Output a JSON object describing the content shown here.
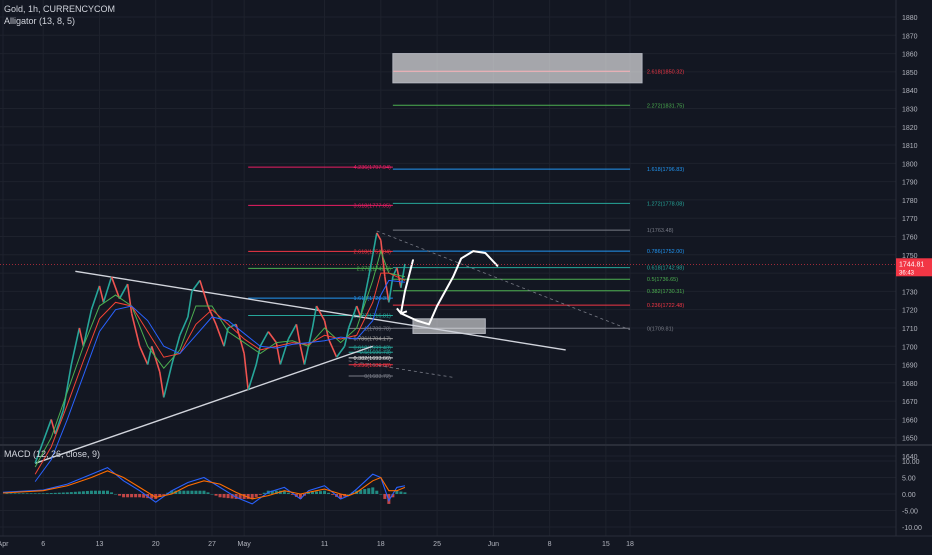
{
  "header": {
    "symbol_line": "Gold, 1h, CURRENCYCOM",
    "indicator_line": "Alligator (13, 8, 5)",
    "macd_line": "MACD (12, 26, close, 9)"
  },
  "chart_data": {
    "type": "line",
    "title": "Gold, 1h, CURRENCYCOM",
    "price_axis": {
      "ticks": [
        1880,
        1870,
        1860,
        1850,
        1840,
        1830,
        1820,
        1810,
        1800,
        1790,
        1780,
        1770,
        1760,
        1750,
        1740,
        1730,
        1720,
        1710,
        1700,
        1690,
        1680,
        1670,
        1660,
        1650,
        1640
      ],
      "ylim": [
        1634,
        1888
      ],
      "last_price": "1744.81",
      "last_price_sub": "36:43"
    },
    "macd_axis": {
      "ticks": [
        "10.00",
        "5.00",
        "0.00",
        "-5.00",
        "-10.00"
      ],
      "values": [
        10,
        5,
        0,
        -5,
        -10
      ],
      "ylim": [
        -13,
        13
      ]
    },
    "time_axis": {
      "labels": [
        "Apr",
        "6",
        "13",
        "20",
        "27",
        "May",
        "11",
        "18",
        "25",
        "Jun",
        "8",
        "15",
        "18"
      ],
      "positions_day": [
        0,
        5,
        12,
        19,
        26,
        30,
        40,
        47,
        54,
        61,
        68,
        75,
        78
      ]
    },
    "price_path": [
      [
        4.0,
        1636
      ],
      [
        5.0,
        1648
      ],
      [
        6.0,
        1660
      ],
      [
        6.5,
        1652
      ],
      [
        7.5,
        1665
      ],
      [
        8.5,
        1690
      ],
      [
        9.5,
        1710
      ],
      [
        10.0,
        1700
      ],
      [
        11.0,
        1720
      ],
      [
        12.0,
        1733
      ],
      [
        12.5,
        1724
      ],
      [
        13.5,
        1738
      ],
      [
        14.5,
        1726
      ],
      [
        15.5,
        1734
      ],
      [
        16.0,
        1718
      ],
      [
        17.0,
        1700
      ],
      [
        18.0,
        1690
      ],
      [
        18.5,
        1700
      ],
      [
        19.5,
        1686
      ],
      [
        20.0,
        1672
      ],
      [
        21.0,
        1690
      ],
      [
        22.0,
        1706
      ],
      [
        23.0,
        1716
      ],
      [
        23.5,
        1730
      ],
      [
        24.5,
        1736
      ],
      [
        25.5,
        1722
      ],
      [
        26.5,
        1712
      ],
      [
        27.5,
        1700
      ],
      [
        28.0,
        1710
      ],
      [
        29.0,
        1712
      ],
      [
        30.0,
        1696
      ],
      [
        30.5,
        1676
      ],
      [
        31.5,
        1690
      ],
      [
        32.0,
        1700
      ],
      [
        33.0,
        1708
      ],
      [
        34.0,
        1702
      ],
      [
        34.5,
        1690
      ],
      [
        35.5,
        1704
      ],
      [
        36.5,
        1712
      ],
      [
        37.0,
        1700
      ],
      [
        37.5,
        1690
      ],
      [
        38.5,
        1710
      ],
      [
        39.0,
        1722
      ],
      [
        40.0,
        1714
      ],
      [
        40.5,
        1704
      ],
      [
        41.5,
        1694
      ],
      [
        42.5,
        1700
      ],
      [
        43.0,
        1710
      ],
      [
        44.0,
        1722
      ],
      [
        44.5,
        1716
      ],
      [
        45.5,
        1738
      ],
      [
        46.0,
        1750
      ],
      [
        46.5,
        1762
      ],
      [
        47.0,
        1758
      ],
      [
        47.5,
        1738
      ],
      [
        48.0,
        1724
      ],
      [
        48.5,
        1738
      ],
      [
        49.0,
        1743
      ],
      [
        49.5,
        1732
      ],
      [
        50.0,
        1745
      ]
    ],
    "alligator": [
      {
        "name": "Lips",
        "color": "#4caf50",
        "values": [
          [
            4.0,
            1634
          ],
          [
            6.0,
            1650
          ],
          [
            8.0,
            1675
          ],
          [
            10.0,
            1700
          ],
          [
            12.0,
            1722
          ],
          [
            14.0,
            1728
          ],
          [
            16.0,
            1722
          ],
          [
            18.0,
            1700
          ],
          [
            20.0,
            1688
          ],
          [
            22.0,
            1698
          ],
          [
            24.0,
            1722
          ],
          [
            26.0,
            1722
          ],
          [
            28.0,
            1708
          ],
          [
            30.0,
            1702
          ],
          [
            32.0,
            1696
          ],
          [
            34.0,
            1702
          ],
          [
            36.0,
            1703
          ],
          [
            38.0,
            1700
          ],
          [
            40.0,
            1710
          ],
          [
            42.0,
            1702
          ],
          [
            44.0,
            1710
          ],
          [
            46.0,
            1736
          ],
          [
            47.0,
            1752
          ],
          [
            48.0,
            1740
          ],
          [
            50.0,
            1738
          ]
        ]
      },
      {
        "name": "Teeth",
        "color": "#f44336",
        "values": [
          [
            4.0,
            1630
          ],
          [
            6.0,
            1645
          ],
          [
            8.0,
            1668
          ],
          [
            10.0,
            1692
          ],
          [
            12.0,
            1715
          ],
          [
            14.0,
            1724
          ],
          [
            16.0,
            1722
          ],
          [
            18.0,
            1708
          ],
          [
            20.0,
            1694
          ],
          [
            22.0,
            1696
          ],
          [
            24.0,
            1712
          ],
          [
            26.0,
            1720
          ],
          [
            28.0,
            1712
          ],
          [
            30.0,
            1704
          ],
          [
            32.0,
            1698
          ],
          [
            34.0,
            1700
          ],
          [
            36.0,
            1702
          ],
          [
            38.0,
            1701
          ],
          [
            40.0,
            1706
          ],
          [
            42.0,
            1704
          ],
          [
            44.0,
            1706
          ],
          [
            46.0,
            1724
          ],
          [
            47.0,
            1740
          ],
          [
            48.0,
            1740
          ],
          [
            50.0,
            1736
          ]
        ]
      },
      {
        "name": "Jaw",
        "color": "#2962ff",
        "values": [
          [
            4.0,
            1626
          ],
          [
            6.0,
            1638
          ],
          [
            8.0,
            1660
          ],
          [
            10.0,
            1684
          ],
          [
            12.0,
            1708
          ],
          [
            14.0,
            1720
          ],
          [
            16.0,
            1722
          ],
          [
            18.0,
            1714
          ],
          [
            20.0,
            1700
          ],
          [
            22.0,
            1696
          ],
          [
            24.0,
            1706
          ],
          [
            26.0,
            1716
          ],
          [
            28.0,
            1714
          ],
          [
            30.0,
            1707
          ],
          [
            32.0,
            1700
          ],
          [
            34.0,
            1699
          ],
          [
            36.0,
            1701
          ],
          [
            38.0,
            1702
          ],
          [
            40.0,
            1703
          ],
          [
            42.0,
            1705
          ],
          [
            44.0,
            1704
          ],
          [
            46.0,
            1714
          ],
          [
            47.0,
            1728
          ],
          [
            48.0,
            1736
          ],
          [
            50.0,
            1735
          ]
        ]
      }
    ],
    "trendlines": [
      {
        "name": "upper-trendline",
        "color": "#d1d4dc",
        "points": [
          [
            9.0,
            1741
          ],
          [
            70.0,
            1698
          ]
        ]
      },
      {
        "name": "lower-trendline",
        "color": "#d1d4dc",
        "points": [
          [
            4.0,
            1636
          ],
          [
            46.0,
            1700
          ]
        ]
      },
      {
        "name": "fib-trend-dashed",
        "color": "#787b86",
        "points": [
          [
            46.5,
            1763
          ],
          [
            78.0,
            1709
          ]
        ]
      },
      {
        "name": "lower-fib-dashed",
        "color": "#787b86",
        "points": [
          [
            43.0,
            1692
          ],
          [
            56.0,
            1683
          ]
        ]
      }
    ],
    "fib_left": [
      {
        "x1": 30.5,
        "x2": 48.5,
        "price": 1797.94,
        "label": "4.236(1797.94)",
        "color": "#e91e63"
      },
      {
        "x1": 30.5,
        "x2": 48.5,
        "price": 1777.05,
        "label": "3.618(1777.05)",
        "color": "#e91e63"
      },
      {
        "x1": 30.5,
        "x2": 48.5,
        "price": 1751.84,
        "label": "2.618(1751.84)",
        "color": "#f23645"
      },
      {
        "x1": 30.5,
        "x2": 48.5,
        "price": 1742.6,
        "label": "2.272(1742.6)",
        "color": "#4caf50"
      },
      {
        "x1": 30.5,
        "x2": 48.5,
        "price": 1726.31,
        "label": "1.618(1726.31)",
        "color": "#2196f3"
      },
      {
        "x1": 30.5,
        "x2": 48.5,
        "price": 1716.81,
        "label": "1.272(1716.81)",
        "color": "#26a69a"
      },
      {
        "x1": 43.0,
        "x2": 48.5,
        "price": 1709.78,
        "label": "1(1709.78)",
        "color": "#787b86"
      },
      {
        "x1": 43.0,
        "x2": 48.5,
        "price": 1704.17,
        "label": "0.786(1704.17)",
        "color": "#9e9e9e"
      },
      {
        "x1": 43.0,
        "x2": 48.5,
        "price": 1699.43,
        "label": "0.618(1699.43)",
        "color": "#26a69a"
      },
      {
        "x1": 43.0,
        "x2": 48.5,
        "price": 1696.73,
        "label": "0.5(1696.73)",
        "color": "#26a69a"
      },
      {
        "x1": 43.0,
        "x2": 48.5,
        "price": 1693.66,
        "label": "0.382(1693.66)",
        "color": "#e0e0e0"
      },
      {
        "x1": 43.0,
        "x2": 48.5,
        "price": 1689.86,
        "label": "0.236(1689.86)",
        "color": "#f23645"
      },
      {
        "x1": 43.0,
        "x2": 48.5,
        "price": 1683.72,
        "label": "0(1683.72)",
        "color": "#787b86"
      }
    ],
    "fib_right": [
      {
        "x1": 48.5,
        "x2": 78.0,
        "price": 1850.32,
        "label": "2.618(1850.32)",
        "color": "#f23645"
      },
      {
        "x1": 48.5,
        "x2": 78.0,
        "price": 1831.75,
        "label": "2.272(1831.75)",
        "color": "#4caf50"
      },
      {
        "x1": 48.5,
        "x2": 78.0,
        "price": 1796.83,
        "label": "1.618(1796.83)",
        "color": "#2196f3"
      },
      {
        "x1": 48.5,
        "x2": 78.0,
        "price": 1778.08,
        "label": "1.272(1778.08)",
        "color": "#26a69a"
      },
      {
        "x1": 48.5,
        "x2": 78.0,
        "price": 1763.48,
        "label": "1(1763.48)",
        "color": "#787b86"
      },
      {
        "x1": 48.5,
        "x2": 78.0,
        "price": 1752.0,
        "label": "0.786(1752.00)",
        "color": "#2196f3"
      },
      {
        "x1": 48.5,
        "x2": 78.0,
        "price": 1742.98,
        "label": "0.618(1742.98)",
        "color": "#26a69a"
      },
      {
        "x1": 48.5,
        "x2": 78.0,
        "price": 1736.65,
        "label": "0.5(1736.65)",
        "color": "#4caf50"
      },
      {
        "x1": 48.5,
        "x2": 78.0,
        "price": 1730.31,
        "label": "0.382(1730.31)",
        "color": "#4caf50"
      },
      {
        "x1": 48.5,
        "x2": 78.0,
        "price": 1722.48,
        "label": "0.236(1722.48)",
        "color": "#f23645"
      },
      {
        "x1": 48.5,
        "x2": 78.0,
        "price": 1709.81,
        "label": "0(1709.81)",
        "color": "#787b86"
      }
    ],
    "target_zone": {
      "x1": 48.5,
      "x2": 79.5,
      "y1": 1844,
      "y2": 1860
    },
    "demand_zone": {
      "x1": 51.0,
      "x2": 60.0,
      "y1": 1707,
      "y2": 1715
    },
    "path_arrow": [
      [
        51.0,
        1747
      ],
      [
        50.0,
        1730
      ],
      [
        49.5,
        1718
      ],
      [
        51.5,
        1714
      ],
      [
        53.0,
        1712
      ],
      [
        54.0,
        1722
      ],
      [
        56.0,
        1738
      ],
      [
        57.0,
        1748
      ],
      [
        58.5,
        1752
      ],
      [
        60.0,
        1751
      ],
      [
        61.5,
        1744
      ]
    ],
    "macd": {
      "macd_line": {
        "color": "#2962ff",
        "values": [
          [
            0,
            0.5
          ],
          [
            5,
            1.2
          ],
          [
            8,
            3.0
          ],
          [
            11,
            6.0
          ],
          [
            13,
            8.0
          ],
          [
            15,
            4.0
          ],
          [
            17,
            1.0
          ],
          [
            19,
            -2.5
          ],
          [
            21,
            1.0
          ],
          [
            23,
            3.5
          ],
          [
            25,
            5.0
          ],
          [
            27,
            2.0
          ],
          [
            29,
            -1.0
          ],
          [
            31,
            -3.0
          ],
          [
            33,
            0.5
          ],
          [
            35,
            2.0
          ],
          [
            37,
            -1.5
          ],
          [
            38,
            1.0
          ],
          [
            40,
            2.5
          ],
          [
            42,
            -1.5
          ],
          [
            43,
            -0.5
          ],
          [
            44,
            1.5
          ],
          [
            46,
            6.0
          ],
          [
            47,
            5.0
          ],
          [
            48,
            -2.0
          ],
          [
            49,
            2.0
          ],
          [
            50,
            2.5
          ]
        ]
      },
      "signal_line": {
        "color": "#ff6d00",
        "values": [
          [
            0,
            0.3
          ],
          [
            5,
            1.0
          ],
          [
            8,
            2.5
          ],
          [
            11,
            5.0
          ],
          [
            13,
            7.0
          ],
          [
            15,
            5.0
          ],
          [
            17,
            2.0
          ],
          [
            19,
            -1.0
          ],
          [
            21,
            0.0
          ],
          [
            23,
            2.5
          ],
          [
            25,
            4.0
          ],
          [
            27,
            3.0
          ],
          [
            29,
            0.5
          ],
          [
            31,
            -1.5
          ],
          [
            33,
            -0.5
          ],
          [
            35,
            1.0
          ],
          [
            37,
            0.0
          ],
          [
            38,
            0.5
          ],
          [
            40,
            1.5
          ],
          [
            42,
            0.0
          ],
          [
            43,
            -0.5
          ],
          [
            44,
            0.5
          ],
          [
            46,
            4.0
          ],
          [
            47,
            5.0
          ],
          [
            48,
            1.0
          ],
          [
            49,
            1.0
          ],
          [
            50,
            2.0
          ]
        ]
      },
      "histogram_pos_color": "#26a69a",
      "histogram_neg_color": "#ef5350"
    }
  },
  "colors": {
    "background": "#131722",
    "grid": "#1e222d",
    "axis_text": "#b2b5be",
    "last_price_bg": "#f23645"
  }
}
